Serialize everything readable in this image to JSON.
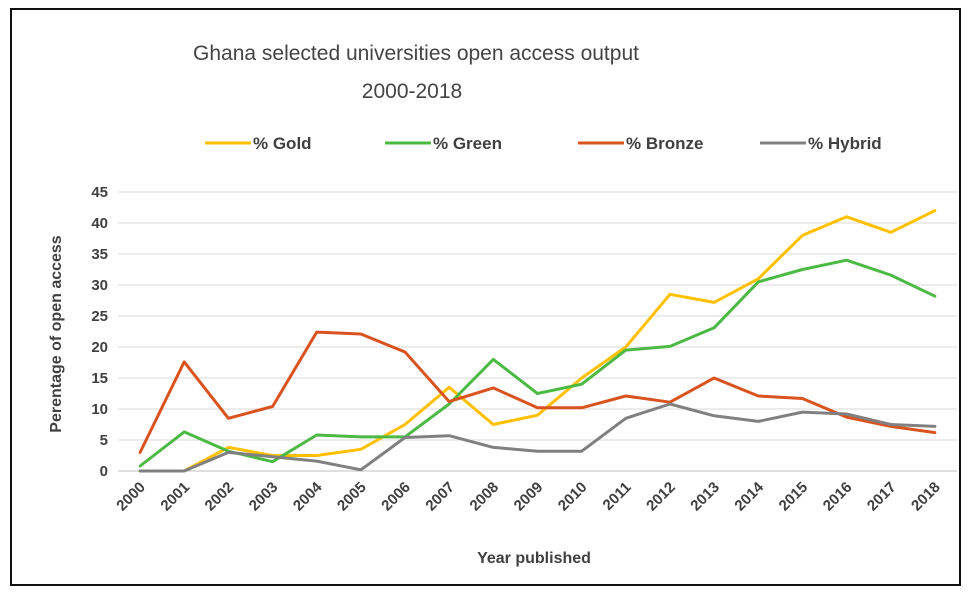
{
  "chart_data": {
    "type": "line",
    "title": "Ghana selected universities open access output",
    "subtitle": "2000-2018",
    "xlabel": "Year published",
    "ylabel": "Perentage of open access",
    "ylim": [
      0,
      45
    ],
    "yticks": [
      0,
      5,
      10,
      15,
      20,
      25,
      30,
      35,
      40,
      45
    ],
    "grid": true,
    "legend_position": "top",
    "categories": [
      "2000",
      "2001",
      "2002",
      "2003",
      "2004",
      "2005",
      "2006",
      "2007",
      "2008",
      "2009",
      "2010",
      "2011",
      "2012",
      "2013",
      "2014",
      "2015",
      "2016",
      "2017",
      "2018"
    ],
    "series": [
      {
        "name": "% Gold",
        "color": "#FFC000",
        "values": [
          0,
          0,
          3.8,
          2.5,
          2.5,
          3.5,
          7.5,
          13.5,
          7.5,
          9,
          15,
          20,
          28.5,
          27.2,
          31,
          38,
          41,
          38.5,
          42
        ]
      },
      {
        "name": "% Green",
        "color": "#4CB944",
        "values": [
          0.8,
          6.3,
          3.2,
          1.5,
          5.8,
          5.5,
          5.5,
          10.8,
          18,
          12.5,
          14,
          19.5,
          20.1,
          23.1,
          30.5,
          32.5,
          34,
          31.6,
          28.2
        ]
      },
      {
        "name": "% Bronze",
        "color": "#D9531E",
        "values": [
          3,
          17.6,
          8.5,
          10.4,
          22.4,
          22.1,
          19.2,
          11.2,
          13.4,
          10.2,
          10.2,
          12.1,
          11.1,
          15,
          12.1,
          11.7,
          8.7,
          7.2,
          6.2
        ]
      },
      {
        "name": "% Hybrid",
        "color": "#808080",
        "values": [
          0,
          0,
          3,
          2.3,
          1.6,
          0.2,
          5.4,
          5.7,
          3.8,
          3.2,
          3.2,
          8.5,
          10.8,
          8.9,
          8,
          9.5,
          9.2,
          7.5,
          7.2
        ]
      }
    ]
  }
}
